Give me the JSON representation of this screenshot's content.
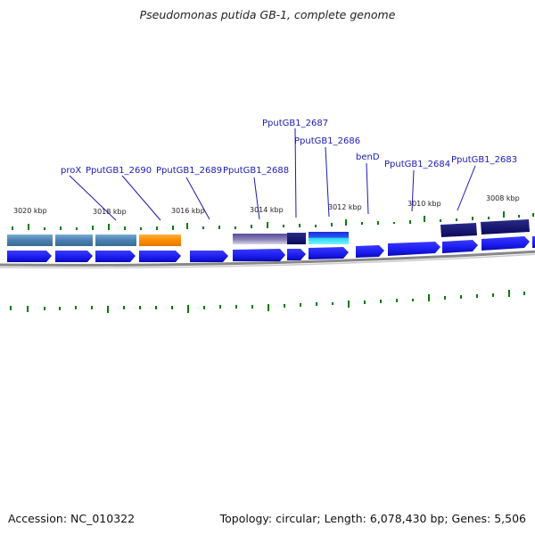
{
  "title": "Pseudomonas putida GB-1, complete genome",
  "footer": {
    "accession": "Accession: NC_010322",
    "summary": "Topology: circular; Length: 6,078,430 bp; Genes: 5,506"
  },
  "tick_labels": [
    "3020 kbp",
    "3018 kbp",
    "3016 kbp",
    "3014 kbp",
    "3012 kbp",
    "3010 kbp",
    "3008 kbp"
  ],
  "gene_labels": [
    "proX",
    "PputGB1_2690",
    "PputGB1_2689",
    "PputGB1_2688",
    "PputGB1_2687",
    "PputGB1_2686",
    "benD",
    "PputGB1_2684",
    "PputGB1_2683"
  ],
  "colors": {
    "gene_label": "#1a1ab8",
    "cds_arrow": "#1a1aee",
    "track_steelblue": "#4a7fb0",
    "track_orange": "#ff8c00",
    "track_navy": "#10106a",
    "track_cyan": "#20d8f0",
    "gc_skew": "#0b7a0b",
    "backbone": "#777777"
  }
}
